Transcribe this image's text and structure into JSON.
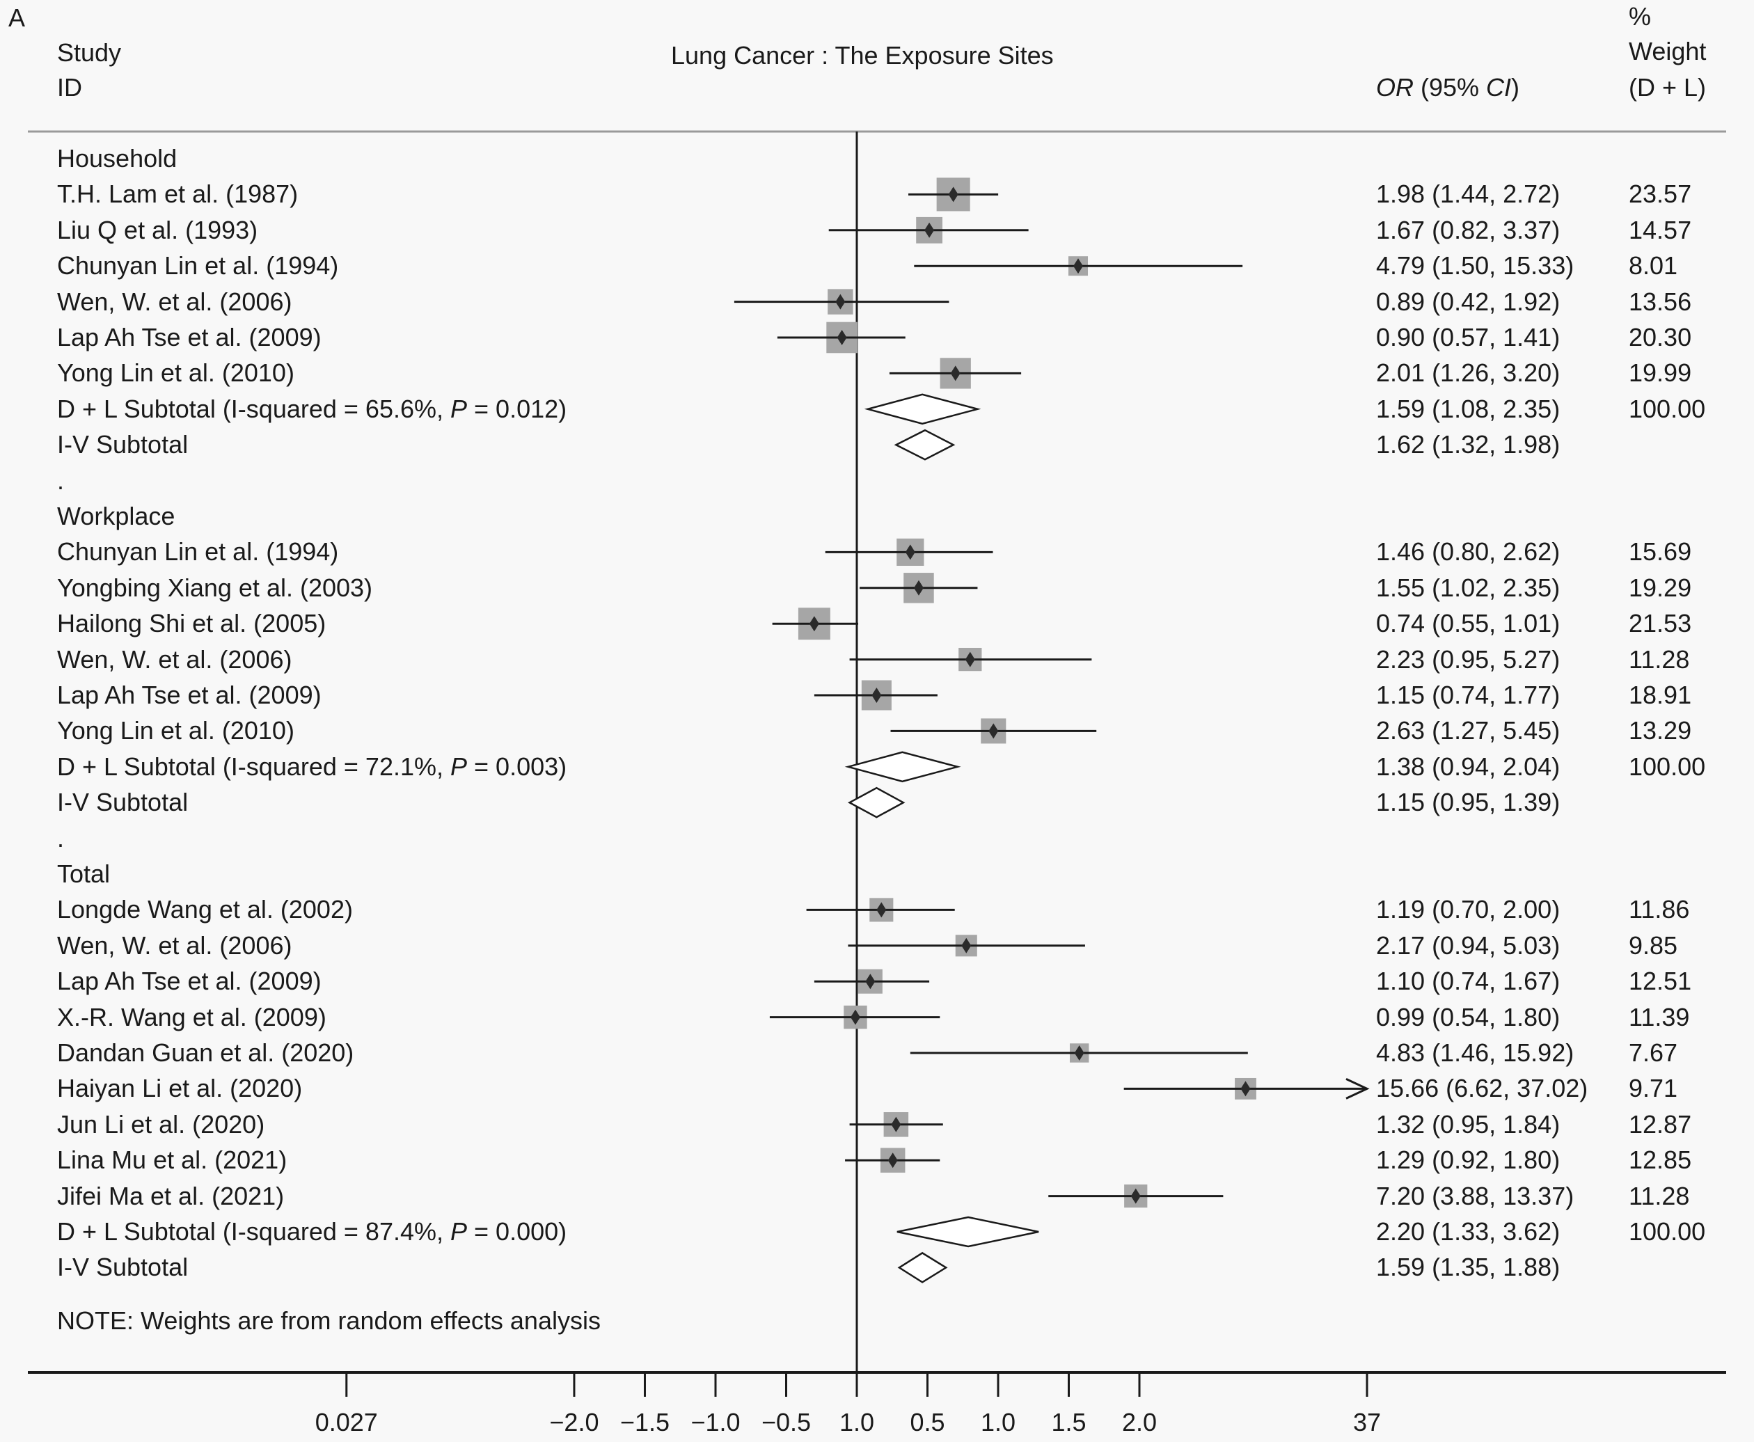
{
  "panel_label": "A",
  "header": {
    "study_line1": "Study",
    "study_line2": "ID",
    "title": "Lung Cancer : The Exposure Sites",
    "or_label_italic": "OR",
    "or_label_mid": " (95% ",
    "or_label_ci": "CI",
    "or_label_end": ")",
    "weight_line1": "%",
    "weight_line2": "Weight",
    "weight_line3": "(D + L)"
  },
  "note": "NOTE: Weights are from random effects analysis",
  "chart_data": {
    "type": "forest",
    "title": "Lung Cancer : The Exposure Sites",
    "xscale": "log",
    "reference_value": 1.0,
    "xlim": [
      0.027,
      37
    ],
    "x_ticks": [
      {
        "value": 0.027,
        "label": "0.027"
      },
      {
        "value": 0.1353,
        "label": "−2.0"
      },
      {
        "value": 0.2231,
        "label": "−1.5"
      },
      {
        "value": 0.3679,
        "label": "−1.0"
      },
      {
        "value": 0.6065,
        "label": "−0.5"
      },
      {
        "value": 1.0,
        "label": "1.0"
      },
      {
        "value": 1.6487,
        "label": "0.5"
      },
      {
        "value": 2.7183,
        "label": "1.0"
      },
      {
        "value": 4.4817,
        "label": "1.5"
      },
      {
        "value": 7.3891,
        "label": "2.0"
      },
      {
        "value": 37,
        "label": "37"
      }
    ],
    "rows": [
      {
        "kind": "group",
        "label": "Household"
      },
      {
        "kind": "study",
        "label": "T.H. Lam et al. (1987)",
        "or": 1.98,
        "lo": 1.44,
        "hi": 2.72,
        "ci_text": "1.98 (1.44, 2.72)",
        "weight": "23.57"
      },
      {
        "kind": "study",
        "label": "Liu Q et al. (1993)",
        "or": 1.67,
        "lo": 0.82,
        "hi": 3.37,
        "ci_text": "1.67 (0.82, 3.37)",
        "weight": "14.57"
      },
      {
        "kind": "study",
        "label": "Chunyan Lin et al. (1994)",
        "or": 4.79,
        "lo": 1.5,
        "hi": 15.33,
        "ci_text": "4.79 (1.50, 15.33)",
        "weight": "8.01"
      },
      {
        "kind": "study",
        "label": "Wen, W. et al. (2006)",
        "or": 0.89,
        "lo": 0.42,
        "hi": 1.92,
        "ci_text": "0.89 (0.42, 1.92)",
        "weight": "13.56"
      },
      {
        "kind": "study",
        "label": "Lap Ah Tse et al. (2009)",
        "or": 0.9,
        "lo": 0.57,
        "hi": 1.41,
        "ci_text": "0.90 (0.57, 1.41)",
        "weight": "20.30"
      },
      {
        "kind": "study",
        "label": "Yong Lin et al. (2010)",
        "or": 2.01,
        "lo": 1.26,
        "hi": 3.2,
        "ci_text": "2.01 (1.26, 3.20)",
        "weight": "19.99"
      },
      {
        "kind": "dl",
        "label_pre": "D + L Subtotal  (I-squared = 65.6%, ",
        "label_p": "P",
        "label_post": " = 0.012)",
        "or": 1.59,
        "lo": 1.08,
        "hi": 2.35,
        "ci_text": "1.59 (1.08, 2.35)",
        "weight": "100.00"
      },
      {
        "kind": "iv",
        "label": "I-V Subtotal",
        "or": 1.62,
        "lo": 1.32,
        "hi": 1.98,
        "ci_text": "1.62 (1.32, 1.98)"
      },
      {
        "kind": "spacer",
        "label": "."
      },
      {
        "kind": "group",
        "label": "Workplace"
      },
      {
        "kind": "study",
        "label": "Chunyan Lin et al. (1994)",
        "or": 1.46,
        "lo": 0.8,
        "hi": 2.62,
        "ci_text": "1.46 (0.80, 2.62)",
        "weight": "15.69"
      },
      {
        "kind": "study",
        "label": "Yongbing Xiang et al. (2003)",
        "or": 1.55,
        "lo": 1.02,
        "hi": 2.35,
        "ci_text": "1.55 (1.02, 2.35)",
        "weight": "19.29"
      },
      {
        "kind": "study",
        "label": "Hailong Shi et al. (2005)",
        "or": 0.74,
        "lo": 0.55,
        "hi": 1.01,
        "ci_text": "0.74 (0.55, 1.01)",
        "weight": "21.53"
      },
      {
        "kind": "study",
        "label": "Wen, W. et al. (2006)",
        "or": 2.23,
        "lo": 0.95,
        "hi": 5.27,
        "ci_text": "2.23 (0.95, 5.27)",
        "weight": "11.28"
      },
      {
        "kind": "study",
        "label": "Lap Ah Tse et al. (2009)",
        "or": 1.15,
        "lo": 0.74,
        "hi": 1.77,
        "ci_text": "1.15 (0.74, 1.77)",
        "weight": "18.91"
      },
      {
        "kind": "study",
        "label": "Yong Lin et al. (2010)",
        "or": 2.63,
        "lo": 1.27,
        "hi": 5.45,
        "ci_text": "2.63 (1.27, 5.45)",
        "weight": "13.29"
      },
      {
        "kind": "dl",
        "label_pre": "D + L Subtotal  (I-squared = 72.1%, ",
        "label_p": "P",
        "label_post": " = 0.003)",
        "or": 1.38,
        "lo": 0.94,
        "hi": 2.04,
        "ci_text": "1.38 (0.94, 2.04)",
        "weight": "100.00"
      },
      {
        "kind": "iv",
        "label": "I-V Subtotal",
        "or": 1.15,
        "lo": 0.95,
        "hi": 1.39,
        "ci_text": "1.15 (0.95, 1.39)"
      },
      {
        "kind": "spacer",
        "label": "."
      },
      {
        "kind": "group",
        "label": "Total"
      },
      {
        "kind": "study",
        "label": "Longde Wang et al. (2002)",
        "or": 1.19,
        "lo": 0.7,
        "hi": 2.0,
        "ci_text": "1.19 (0.70, 2.00)",
        "weight": "11.86"
      },
      {
        "kind": "study",
        "label": "Wen, W. et al. (2006)",
        "or": 2.17,
        "lo": 0.94,
        "hi": 5.03,
        "ci_text": "2.17 (0.94, 5.03)",
        "weight": "9.85"
      },
      {
        "kind": "study",
        "label": "Lap Ah Tse et al. (2009)",
        "or": 1.1,
        "lo": 0.74,
        "hi": 1.67,
        "ci_text": "1.10 (0.74, 1.67)",
        "weight": "12.51"
      },
      {
        "kind": "study",
        "label": "X.-R. Wang et al. (2009)",
        "or": 0.99,
        "lo": 0.54,
        "hi": 1.8,
        "ci_text": "0.99 (0.54, 1.80)",
        "weight": "11.39"
      },
      {
        "kind": "study",
        "label": "Dandan Guan et al. (2020)",
        "or": 4.83,
        "lo": 1.46,
        "hi": 15.92,
        "ci_text": "4.83 (1.46, 15.92)",
        "weight": "7.67"
      },
      {
        "kind": "study",
        "label": "Haiyan Li et al. (2020)",
        "or": 15.66,
        "lo": 6.62,
        "hi": 37.02,
        "ci_text": "15.66 (6.62, 37.02)",
        "weight": "9.71",
        "arrow_right": true
      },
      {
        "kind": "study",
        "label": "Jun Li et al. (2020)",
        "or": 1.32,
        "lo": 0.95,
        "hi": 1.84,
        "ci_text": "1.32 (0.95, 1.84)",
        "weight": "12.87"
      },
      {
        "kind": "study",
        "label": "Lina Mu et al. (2021)",
        "or": 1.29,
        "lo": 0.92,
        "hi": 1.8,
        "ci_text": "1.29 (0.92, 1.80)",
        "weight": "12.85"
      },
      {
        "kind": "study",
        "label": "Jifei Ma et al. (2021)",
        "or": 7.2,
        "lo": 3.88,
        "hi": 13.37,
        "ci_text": "7.20 (3.88, 13.37)",
        "weight": "11.28"
      },
      {
        "kind": "dl",
        "label_pre": "D + L Subtotal  (I-squared = 87.4%, ",
        "label_p": "P",
        "label_post": " = 0.000)",
        "or": 2.2,
        "lo": 1.33,
        "hi": 3.62,
        "ci_text": "2.20 (1.33, 3.62)",
        "weight": "100.00"
      },
      {
        "kind": "iv",
        "label": "I-V Subtotal",
        "or": 1.59,
        "lo": 1.35,
        "hi": 1.88,
        "ci_text": "1.59 (1.35, 1.88)"
      }
    ]
  },
  "colors": {
    "background": "#f8f8f8",
    "text": "#1a1a1a",
    "line": "#1a1a1a",
    "weight_box": "#a6a6a6",
    "rule": "#9a9a9a"
  }
}
